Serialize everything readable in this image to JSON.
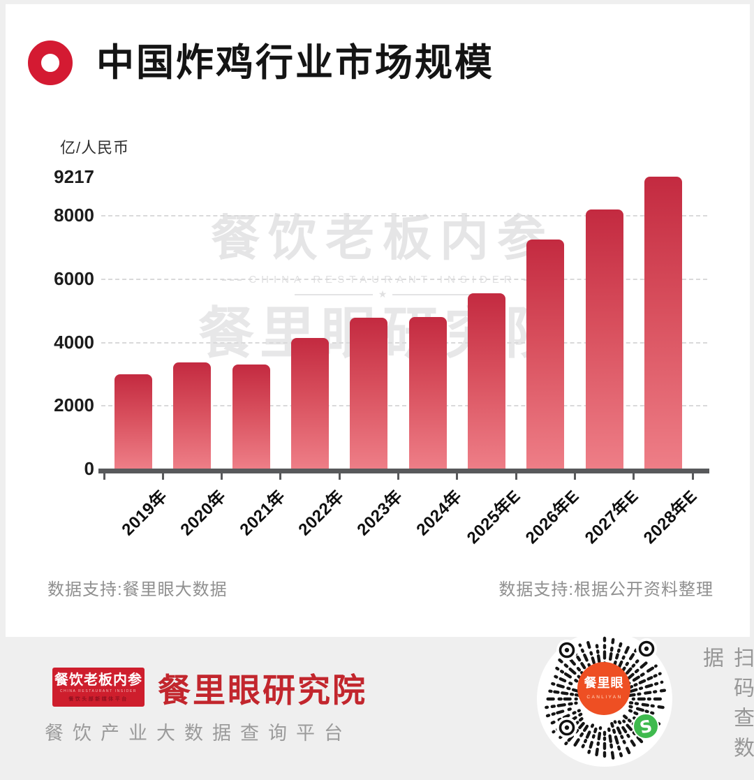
{
  "header": {
    "title": "中国炸鸡行业市场规模"
  },
  "chart_data": {
    "type": "bar",
    "title": "中国炸鸡行业市场规模",
    "unit_label": "亿/人民币",
    "categories": [
      "2019年",
      "2020年",
      "2021年",
      "2022年",
      "2023年",
      "2024年",
      "2025年E",
      "2026年E",
      "2027年E",
      "2028年E"
    ],
    "values": [
      2970,
      3340,
      3280,
      4130,
      4770,
      4790,
      5530,
      7230,
      8180,
      9217
    ],
    "yticks": [
      0,
      2000,
      4000,
      6000,
      8000,
      9217
    ],
    "gridlines": [
      2000,
      4000,
      6000,
      8000
    ],
    "ylim": [
      0,
      9217
    ],
    "grid": "dashed-horizontal",
    "legend": "none",
    "bar_color_top": "#c32a40",
    "bar_color_mid": "#d84f5d",
    "bar_color_bottom": "#ee7e87",
    "axis_color": "#58595b"
  },
  "watermark": {
    "line1": "餐饮老板内参",
    "line2": "CHINA RESTAURANT INSIDER",
    "star": "★",
    "line3": "餐里眼研究院"
  },
  "sources": {
    "left": "数据支持:餐里眼大数据",
    "right": "数据支持:根据公开资料整理"
  },
  "footer": {
    "badge": {
      "line1": "餐饮老板内参",
      "line2": "CHINA RESTAURANT INSIDER",
      "line3": "餐饮头部新媒体平台"
    },
    "brand": "餐里眼研究院",
    "tagline": "餐饮产业大数据查询平台",
    "qr": {
      "center_line1": "餐里眼",
      "center_line2": "CANLIYAN",
      "center_color": "#ee4f23",
      "badge_color": "#3fba4e",
      "badge_letter": "S"
    },
    "scan_text": "扫码查数据"
  }
}
